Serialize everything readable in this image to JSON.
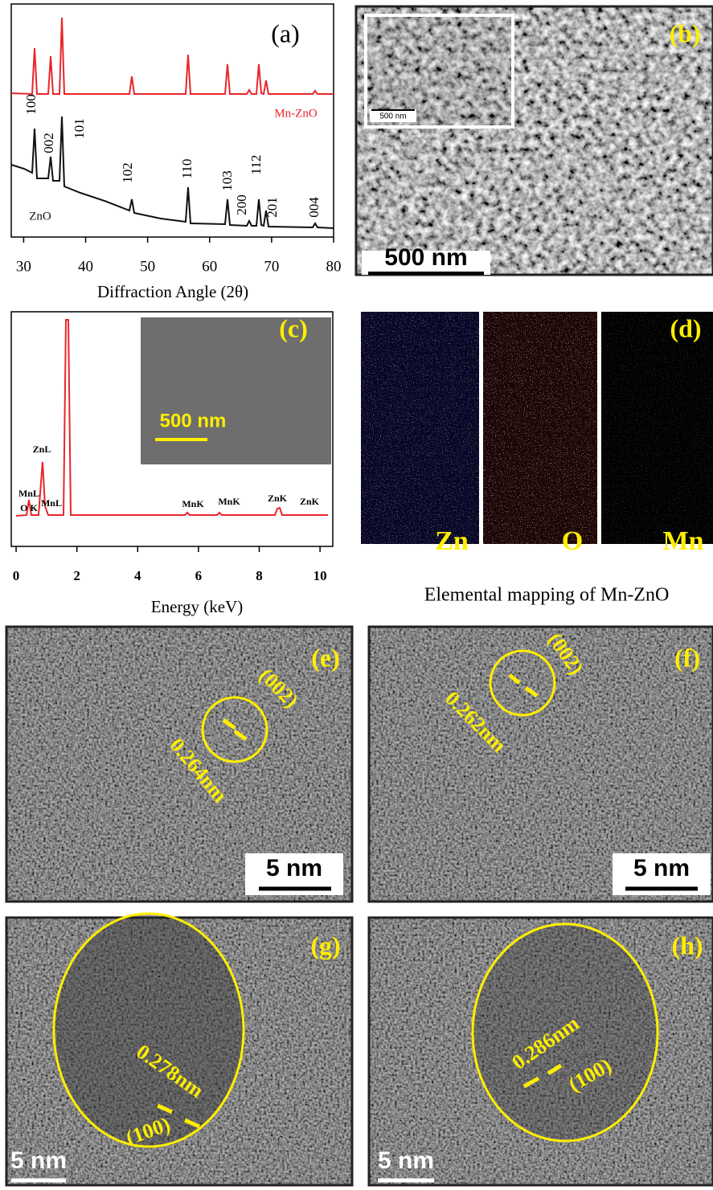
{
  "panels": {
    "a": {
      "label": "(a)",
      "series": [
        {
          "name": "Mn-ZnO",
          "color": "#e8262a"
        },
        {
          "name": "ZnO",
          "color": "#111111"
        }
      ],
      "peak_labels": [
        "100",
        "002",
        "101",
        "102",
        "110",
        "103",
        "200",
        "112",
        "201",
        "004"
      ],
      "x_axis": {
        "title": "Diffraction Angle (2θ)",
        "xlim": [
          28,
          80
        ],
        "xticks": [
          30,
          40,
          50,
          60,
          70,
          80
        ]
      }
    },
    "b": {
      "label": "(b)",
      "scale_bar": "500 nm",
      "inset_scale_bar": "500 nm"
    },
    "c": {
      "label": "(c)",
      "inset_scale_bar": "500 nm",
      "color": "#e8262a",
      "peak_labels": [
        "ZnL",
        "MnL",
        "O K",
        "MnL",
        "MnK",
        "MnK",
        "ZnK",
        "ZnK"
      ],
      "x_axis": {
        "title": "Energy (keV)",
        "xlim": [
          -0.16,
          10.42
        ],
        "xticks": [
          0,
          2,
          4,
          6,
          8,
          10
        ]
      }
    },
    "d": {
      "label": "(d)",
      "maps": [
        "Zn",
        "O",
        "Mn"
      ],
      "caption": "Elemental mapping of Mn-ZnO"
    },
    "e": {
      "label": "(e)",
      "plane": "(002)",
      "spacing": "0.264nm",
      "scale_bar": "5 nm"
    },
    "f": {
      "label": "(f)",
      "plane": "(002)",
      "spacing": "0.262nm",
      "scale_bar": "5 nm"
    },
    "g": {
      "label": "(g)",
      "plane": "(100)",
      "spacing": "0.278nm",
      "scale_bar": "5 nm"
    },
    "h": {
      "label": "(h)",
      "plane": "(100)",
      "spacing": "0.286nm",
      "scale_bar": "5 nm"
    }
  }
}
